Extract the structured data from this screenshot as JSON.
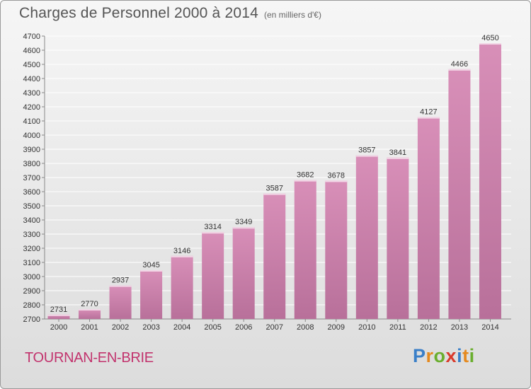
{
  "title": "Charges de Personnel 2000 à 2014",
  "unit_note": "(en milliers d'€)",
  "location": "TOURNAN-EN-BRIE",
  "logo": {
    "text": "Proxiti",
    "letters": [
      {
        "ch": "P",
        "color": "#3a7fc8"
      },
      {
        "ch": "r",
        "color": "#e58a1f"
      },
      {
        "ch": "o",
        "color": "#6aae2e"
      },
      {
        "ch": "x",
        "color": "#d93a2b"
      },
      {
        "ch": "i",
        "color": "#3a7fc8"
      },
      {
        "ch": "t",
        "color": "#e58a1f"
      },
      {
        "ch": "i",
        "color": "#6aae2e"
      }
    ]
  },
  "colors": {
    "bar": "#d88fb8",
    "bar_dark": "#b8709a",
    "grid": "#ffffff",
    "city": "#c2336d"
  },
  "chart_data": {
    "type": "bar",
    "title": "Charges de Personnel 2000 à 2014",
    "subtitle": "(en milliers d'€)",
    "xlabel": "",
    "ylabel": "",
    "ylim": [
      2700,
      4700
    ],
    "ytick_step": 100,
    "grid": true,
    "categories": [
      "2000",
      "2001",
      "2002",
      "2003",
      "2004",
      "2005",
      "2006",
      "2007",
      "2008",
      "2009",
      "2010",
      "2011",
      "2012",
      "2013",
      "2014"
    ],
    "values": [
      2731,
      2770,
      2937,
      3045,
      3146,
      3314,
      3349,
      3587,
      3682,
      3678,
      3857,
      3841,
      4127,
      4466,
      4650
    ]
  }
}
